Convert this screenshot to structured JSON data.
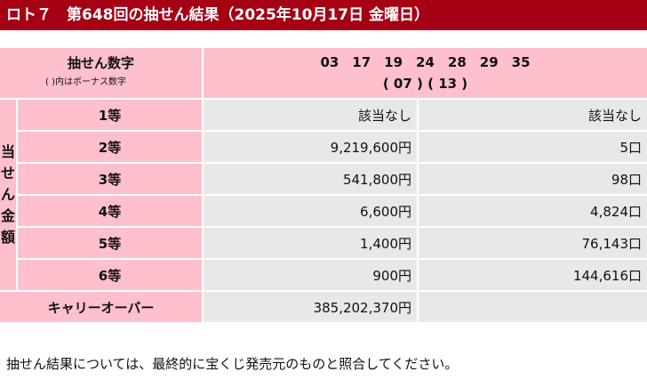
{
  "header": {
    "title": "ロト７　第648回の抽せん結果（2025年10月17日 金曜日）"
  },
  "draw": {
    "label": "抽せん数字",
    "note": "( )内はボーナス数字",
    "main_numbers": "03　17　19　24　28　29　35",
    "bonus_numbers": "( 07 ) ( 13 )"
  },
  "side_label": [
    "当",
    "せ",
    "ん",
    "金",
    "額"
  ],
  "prizes": [
    {
      "rank": "1等",
      "amount": "該当なし",
      "count": "該当なし"
    },
    {
      "rank": "2等",
      "amount": "9,219,600円",
      "count": "5口"
    },
    {
      "rank": "3等",
      "amount": "541,800円",
      "count": "98口"
    },
    {
      "rank": "4等",
      "amount": "6,600円",
      "count": "4,824口"
    },
    {
      "rank": "5等",
      "amount": "1,400円",
      "count": "76,143口"
    },
    {
      "rank": "6等",
      "amount": "900円",
      "count": "144,616口"
    }
  ],
  "carryover": {
    "label": "キャリーオーバー",
    "amount": "385,202,370円"
  },
  "footer": "抽せん結果については、最終的に宝くじ発売元のものと照合してください。",
  "colors": {
    "header": "#a50013",
    "pink": "#fdc0cc",
    "gray": "#e8e8e8"
  }
}
